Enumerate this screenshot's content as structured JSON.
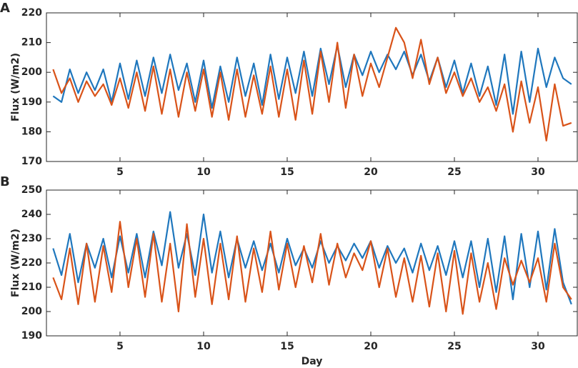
{
  "chart_data": [
    {
      "type": "line",
      "panel_label": "A",
      "ylabel": "Flux (W/m2)",
      "x": [
        1,
        1.5,
        2,
        2.5,
        3,
        3.5,
        4,
        4.5,
        5,
        5.5,
        6,
        6.5,
        7,
        7.5,
        8,
        8.5,
        9,
        9.5,
        10,
        10.5,
        11,
        11.5,
        12,
        12.5,
        13,
        13.5,
        14,
        14.5,
        15,
        15.5,
        16,
        16.5,
        17,
        17.5,
        18,
        18.5,
        19,
        19.5,
        20,
        20.5,
        21,
        21.5,
        22,
        22.5,
        23,
        23.5,
        24,
        24.5,
        25,
        25.5,
        26,
        26.5,
        27,
        27.5,
        28,
        28.5,
        29,
        29.5,
        30,
        30.5,
        31,
        31.5,
        32
      ],
      "xlim": [
        0.6,
        32.35
      ],
      "xticks": [
        5,
        10,
        15,
        20,
        25,
        30
      ],
      "ylim": [
        170,
        220
      ],
      "yticks": [
        170,
        180,
        190,
        200,
        210,
        220
      ],
      "series": [
        {
          "color": "#1f77bd",
          "values": [
            192,
            190,
            201,
            193,
            200,
            194,
            201,
            190,
            203,
            191,
            204,
            192,
            205,
            193,
            206,
            194,
            203,
            190,
            204,
            188,
            202,
            190,
            205,
            192,
            203,
            189,
            206,
            191,
            205,
            193,
            207,
            192,
            208,
            196,
            209,
            195,
            206,
            199,
            207,
            200,
            206,
            201,
            207,
            199,
            206,
            197,
            205,
            195,
            204,
            193,
            203,
            192,
            202,
            189,
            206,
            186,
            207,
            190,
            208,
            195,
            205,
            198,
            196
          ]
        },
        {
          "color": "#d95319",
          "values": [
            201,
            193,
            198,
            190,
            197,
            192,
            196,
            189,
            198,
            188,
            200,
            187,
            202,
            186,
            201,
            185,
            200,
            187,
            201,
            185,
            200,
            184,
            201,
            185,
            199,
            186,
            202,
            185,
            201,
            184,
            204,
            186,
            207,
            190,
            210,
            188,
            206,
            192,
            203,
            195,
            205,
            215,
            210,
            198,
            211,
            196,
            205,
            193,
            200,
            192,
            198,
            190,
            195,
            187,
            196,
            180,
            197,
            183,
            195,
            177,
            196,
            182,
            183
          ]
        }
      ]
    },
    {
      "type": "line",
      "panel_label": "B",
      "ylabel": "Flux (W/m2)",
      "xlabel": "Day",
      "x": [
        1,
        1.5,
        2,
        2.5,
        3,
        3.5,
        4,
        4.5,
        5,
        5.5,
        6,
        6.5,
        7,
        7.5,
        8,
        8.5,
        9,
        9.5,
        10,
        10.5,
        11,
        11.5,
        12,
        12.5,
        13,
        13.5,
        14,
        14.5,
        15,
        15.5,
        16,
        16.5,
        17,
        17.5,
        18,
        18.5,
        19,
        19.5,
        20,
        20.5,
        21,
        21.5,
        22,
        22.5,
        23,
        23.5,
        24,
        24.5,
        25,
        25.5,
        26,
        26.5,
        27,
        27.5,
        28,
        28.5,
        29,
        29.5,
        30,
        30.5,
        31,
        31.5,
        32
      ],
      "xlim": [
        0.6,
        32.35
      ],
      "xticks": [
        5,
        10,
        15,
        20,
        25,
        30
      ],
      "ylim": [
        190,
        250
      ],
      "yticks": [
        190,
        200,
        210,
        220,
        230,
        240,
        250
      ],
      "series": [
        {
          "color": "#1f77bd",
          "values": [
            226,
            215,
            232,
            212,
            228,
            218,
            230,
            214,
            231,
            216,
            232,
            214,
            233,
            219,
            241,
            218,
            232,
            215,
            240,
            216,
            233,
            214,
            230,
            218,
            229,
            217,
            228,
            216,
            230,
            219,
            226,
            218,
            229,
            220,
            227,
            221,
            228,
            222,
            229,
            218,
            227,
            220,
            226,
            216,
            228,
            217,
            227,
            215,
            229,
            214,
            229,
            210,
            230,
            208,
            231,
            205,
            232,
            210,
            233,
            209,
            234,
            212,
            203
          ]
        },
        {
          "color": "#d95319",
          "values": [
            214,
            205,
            226,
            203,
            228,
            204,
            227,
            208,
            237,
            210,
            230,
            206,
            232,
            204,
            228,
            200,
            236,
            206,
            230,
            203,
            228,
            205,
            231,
            204,
            226,
            208,
            233,
            209,
            228,
            210,
            227,
            212,
            232,
            211,
            228,
            214,
            224,
            217,
            229,
            210,
            226,
            206,
            222,
            204,
            223,
            202,
            224,
            200,
            225,
            199,
            224,
            204,
            220,
            201,
            222,
            211,
            221,
            212,
            222,
            204,
            228,
            210,
            205
          ]
        }
      ]
    }
  ]
}
